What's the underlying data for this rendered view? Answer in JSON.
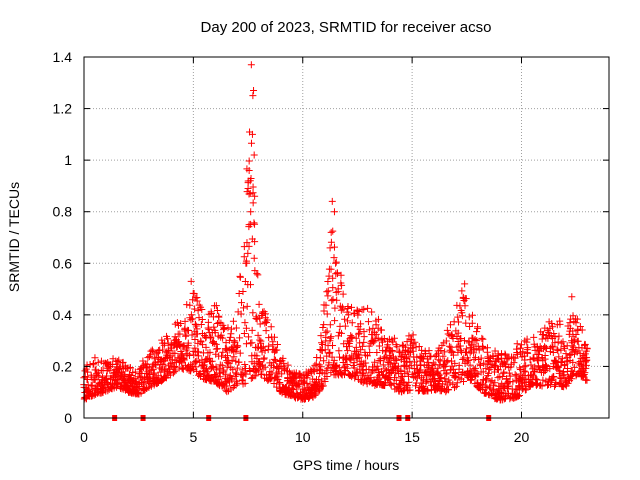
{
  "chart_data": {
    "type": "scatter",
    "title": "Day 200 of 2023, SRMTID for receiver acso",
    "xlabel": "GPS time / hours",
    "ylabel": "SRMTID / TECUs",
    "xlim": [
      0,
      24
    ],
    "ylim": [
      0,
      1.4
    ],
    "xticks": [
      0,
      5,
      10,
      15,
      20
    ],
    "xtick_labels": [
      "0",
      "5",
      "10",
      "15",
      "20"
    ],
    "yticks": [
      0,
      0.2,
      0.4,
      0.6,
      0.8,
      1,
      1.2,
      1.4
    ],
    "ytick_labels": [
      "0",
      "0.2",
      "0.4",
      "0.6",
      "0.8",
      "1",
      "1.2",
      "1.4"
    ],
    "grid": true,
    "marker": "+",
    "color": "#ff0000",
    "baseline_marks_x": [
      1.4,
      2.7,
      5.7,
      7.4,
      14.4,
      14.8,
      18.5
    ],
    "series": [
      {
        "name": "SRMTID",
        "envelope_hours": [
          0,
          0.5,
          1,
          1.5,
          2,
          2.5,
          3,
          3.5,
          4,
          4.5,
          5,
          5.5,
          6,
          6.5,
          7,
          7.3,
          7.6,
          8,
          8.5,
          9,
          9.5,
          10,
          10.5,
          11,
          11.4,
          12,
          12.5,
          13,
          13.5,
          14,
          14.5,
          15,
          15.5,
          16,
          16.5,
          17,
          17.3,
          17.6,
          18,
          18.5,
          19,
          19.5,
          20,
          20.5,
          21,
          21.5,
          22,
          22.3,
          22.6,
          23
        ],
        "envelope_low": [
          0.07,
          0.09,
          0.1,
          0.12,
          0.1,
          0.09,
          0.12,
          0.14,
          0.17,
          0.19,
          0.18,
          0.15,
          0.14,
          0.1,
          0.12,
          0.13,
          0.15,
          0.17,
          0.14,
          0.1,
          0.08,
          0.07,
          0.08,
          0.13,
          0.16,
          0.17,
          0.15,
          0.12,
          0.13,
          0.12,
          0.1,
          0.11,
          0.1,
          0.11,
          0.1,
          0.12,
          0.14,
          0.15,
          0.12,
          0.08,
          0.07,
          0.07,
          0.09,
          0.13,
          0.12,
          0.12,
          0.12,
          0.15,
          0.17,
          0.14
        ],
        "envelope_high": [
          0.2,
          0.24,
          0.22,
          0.24,
          0.2,
          0.19,
          0.27,
          0.3,
          0.34,
          0.41,
          0.5,
          0.4,
          0.46,
          0.35,
          0.4,
          0.75,
          1.25,
          0.46,
          0.38,
          0.25,
          0.19,
          0.17,
          0.2,
          0.45,
          0.75,
          0.44,
          0.42,
          0.43,
          0.38,
          0.33,
          0.3,
          0.33,
          0.28,
          0.25,
          0.3,
          0.47,
          0.5,
          0.45,
          0.35,
          0.28,
          0.25,
          0.27,
          0.3,
          0.32,
          0.36,
          0.4,
          0.36,
          0.42,
          0.38,
          0.3
        ],
        "peak_points": [
          {
            "x": 7.65,
            "y": 1.37
          },
          {
            "x": 7.75,
            "y": 1.27
          },
          {
            "x": 7.72,
            "y": 1.25
          },
          {
            "x": 7.7,
            "y": 1.1
          },
          {
            "x": 7.78,
            "y": 1.02
          },
          {
            "x": 7.55,
            "y": 0.96
          },
          {
            "x": 7.6,
            "y": 0.92
          },
          {
            "x": 7.5,
            "y": 0.89
          },
          {
            "x": 7.8,
            "y": 0.86
          },
          {
            "x": 7.62,
            "y": 0.8
          },
          {
            "x": 7.55,
            "y": 0.75
          },
          {
            "x": 7.45,
            "y": 0.68
          },
          {
            "x": 7.4,
            "y": 0.6
          },
          {
            "x": 7.9,
            "y": 0.56
          },
          {
            "x": 11.35,
            "y": 0.84
          },
          {
            "x": 11.45,
            "y": 0.8
          },
          {
            "x": 11.3,
            "y": 0.72
          },
          {
            "x": 11.25,
            "y": 0.66
          },
          {
            "x": 11.5,
            "y": 0.6
          },
          {
            "x": 11.2,
            "y": 0.55
          },
          {
            "x": 4.9,
            "y": 0.53
          },
          {
            "x": 17.4,
            "y": 0.52
          },
          {
            "x": 22.3,
            "y": 0.47
          }
        ]
      }
    ]
  }
}
